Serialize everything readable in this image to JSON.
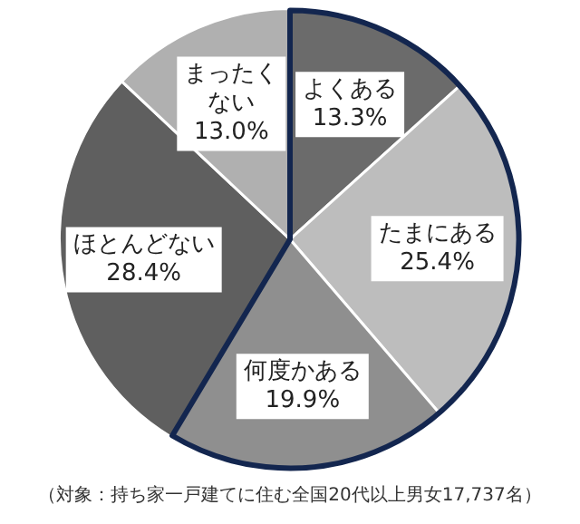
{
  "chart_data": {
    "type": "pie",
    "categories": [
      "よくある",
      "たまにある",
      "何度かある",
      "ほとんどない",
      "まったくない"
    ],
    "values": [
      13.3,
      25.4,
      19.9,
      28.4,
      13.0
    ],
    "value_labels": [
      "13.3%",
      "25.4%",
      "19.9%",
      "28.4%",
      "13.0%"
    ],
    "colors": [
      "#6b6b6b",
      "#bdbdbd",
      "#8f8f8f",
      "#5f5f5f",
      "#b0b0b0"
    ],
    "annotations": [
      "（対象：持ち家一戸建てに住む全国20代以上男女17,737名）"
    ],
    "legend": false
  }
}
